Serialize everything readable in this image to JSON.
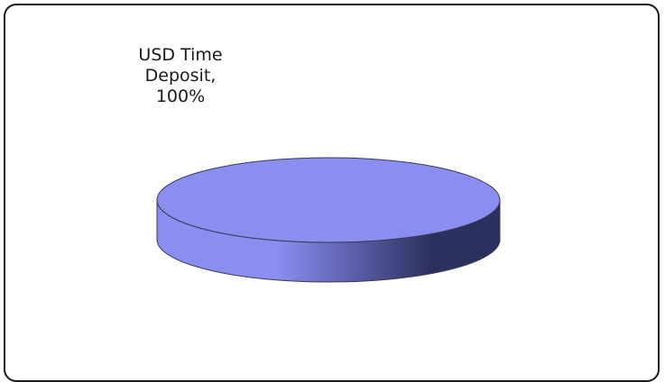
{
  "chart_data": {
    "type": "pie",
    "style": "3d",
    "categories": [
      "USD Time Deposit"
    ],
    "values": [
      100
    ],
    "data_labels": [
      [
        "USD Time",
        "Deposit,",
        "100%"
      ]
    ],
    "colors": {
      "top": "#8a8ef0",
      "side_light": "#8a8ef0",
      "side_dark": "#2c305e",
      "outline": "#3a3a55"
    }
  }
}
